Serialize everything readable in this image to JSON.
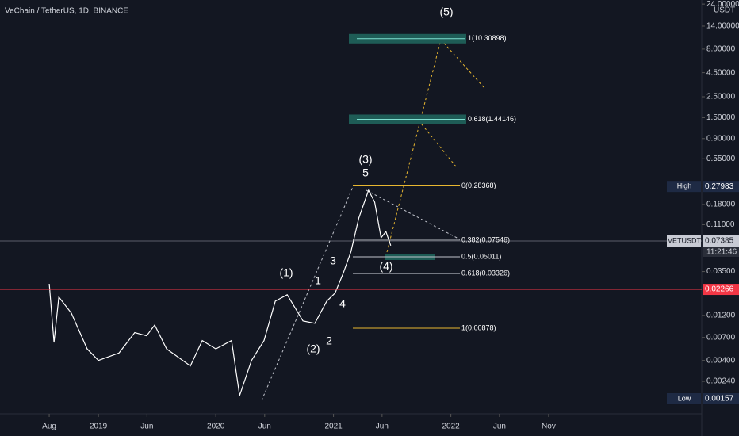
{
  "chart_data": {
    "type": "line",
    "title": "VeChain / TetherUS, 1D, BINANCE",
    "y_unit": "USDT",
    "log_scale": true,
    "grid": false,
    "xlim": [
      "2018-03-01",
      "2024-02-20"
    ],
    "ylim": [
      0.00113,
      26.5
    ],
    "xticks": [
      {
        "value": "2018-08-01",
        "label": "Aug"
      },
      {
        "value": "2019-01-01",
        "label": "2019"
      },
      {
        "value": "2019-06-01",
        "label": "Jun"
      },
      {
        "value": "2020-01-01",
        "label": "2020"
      },
      {
        "value": "2020-06-01",
        "label": "Jun"
      },
      {
        "value": "2021-01-01",
        "label": "2021"
      },
      {
        "value": "2021-06-01",
        "label": "Jun"
      },
      {
        "value": "2022-01-01",
        "label": "2022"
      },
      {
        "value": "2022-06-01",
        "label": "Jun"
      },
      {
        "value": "2022-11-01",
        "label": "Nov"
      }
    ],
    "yticks": [
      {
        "value": 24,
        "label": "24.00000"
      },
      {
        "value": 14,
        "label": "14.00000"
      },
      {
        "value": 8,
        "label": "8.00000"
      },
      {
        "value": 4.5,
        "label": "4.50000"
      },
      {
        "value": 2.5,
        "label": "2.50000"
      },
      {
        "value": 1.5,
        "label": "1.50000"
      },
      {
        "value": 0.9,
        "label": "0.90000"
      },
      {
        "value": 0.55,
        "label": "0.55000"
      },
      {
        "value": 0.18,
        "label": "0.18000"
      },
      {
        "value": 0.11,
        "label": "0.11000"
      },
      {
        "value": 0.035,
        "label": "0.03500"
      },
      {
        "value": 0.012,
        "label": "0.01200"
      },
      {
        "value": 0.007,
        "label": "0.00700"
      },
      {
        "value": 0.004,
        "label": "0.00400"
      },
      {
        "value": 0.0024,
        "label": "0.00240"
      }
    ],
    "x": [
      "2018-08-01",
      "2018-08-16",
      "2018-08-31",
      "2018-10-09",
      "2018-11-27",
      "2019-01-01",
      "2019-03-06",
      "2019-04-24",
      "2019-05-31",
      "2019-06-25",
      "2019-08-01",
      "2019-10-14",
      "2019-11-20",
      "2020-01-01",
      "2020-02-19",
      "2020-03-15",
      "2020-04-21",
      "2020-05-30",
      "2020-07-04",
      "2020-08-10",
      "2020-09-28",
      "2020-11-04",
      "2020-12-11",
      "2021-01-06",
      "2021-01-31",
      "2021-02-24",
      "2021-03-21",
      "2021-04-20",
      "2021-05-09",
      "2021-05-29",
      "2021-06-13",
      "2021-06-28"
    ],
    "series": [
      {
        "name": "VETUSDT",
        "color": "#ffffff",
        "values": [
          0.026,
          0.0062,
          0.0188,
          0.0127,
          0.0053,
          0.004,
          0.0048,
          0.0079,
          0.0073,
          0.0095,
          0.0053,
          0.0035,
          0.0065,
          0.0053,
          0.0065,
          0.0017,
          0.004,
          0.0065,
          0.017,
          0.0199,
          0.0105,
          0.0099,
          0.017,
          0.0207,
          0.0335,
          0.0565,
          0.13,
          0.255,
          0.191,
          0.08,
          0.093,
          0.066
        ]
      }
    ],
    "price_markers": [
      {
        "name": "High",
        "value": 0.27983,
        "color": "#1e2a44"
      },
      {
        "name": "VETUSDT",
        "value": 0.07385,
        "color": "#c8cbd4",
        "countdown": "11:21:46"
      },
      {
        "value": 0.02266,
        "color": "#f23645"
      },
      {
        "name": "Low",
        "value": 0.00157,
        "color": "#1e2a44"
      }
    ],
    "fib_levels": [
      {
        "label": "0(0.28368)",
        "value": 0.28368,
        "color": "#e8b730"
      },
      {
        "label": "0.382(0.07546)",
        "value": 0.07546,
        "color": "#9598a1"
      },
      {
        "label": "0.5(0.05011)",
        "value": 0.05011,
        "color": "#c0c3cc"
      },
      {
        "label": "0.618(0.03326)",
        "value": 0.03326,
        "color": "#9598a1"
      },
      {
        "label": "1(0.00878)",
        "value": 0.00878,
        "color": "#e8b730"
      }
    ],
    "targets": [
      {
        "label": "0.618(1.44146)",
        "value": 1.44146
      },
      {
        "label": "1(10.30898)",
        "value": 10.30898
      }
    ],
    "waves": [
      "(5)",
      "(3)",
      "5",
      "(1)",
      "1",
      "3",
      "4",
      "(2)",
      "2",
      "(4)"
    ]
  }
}
